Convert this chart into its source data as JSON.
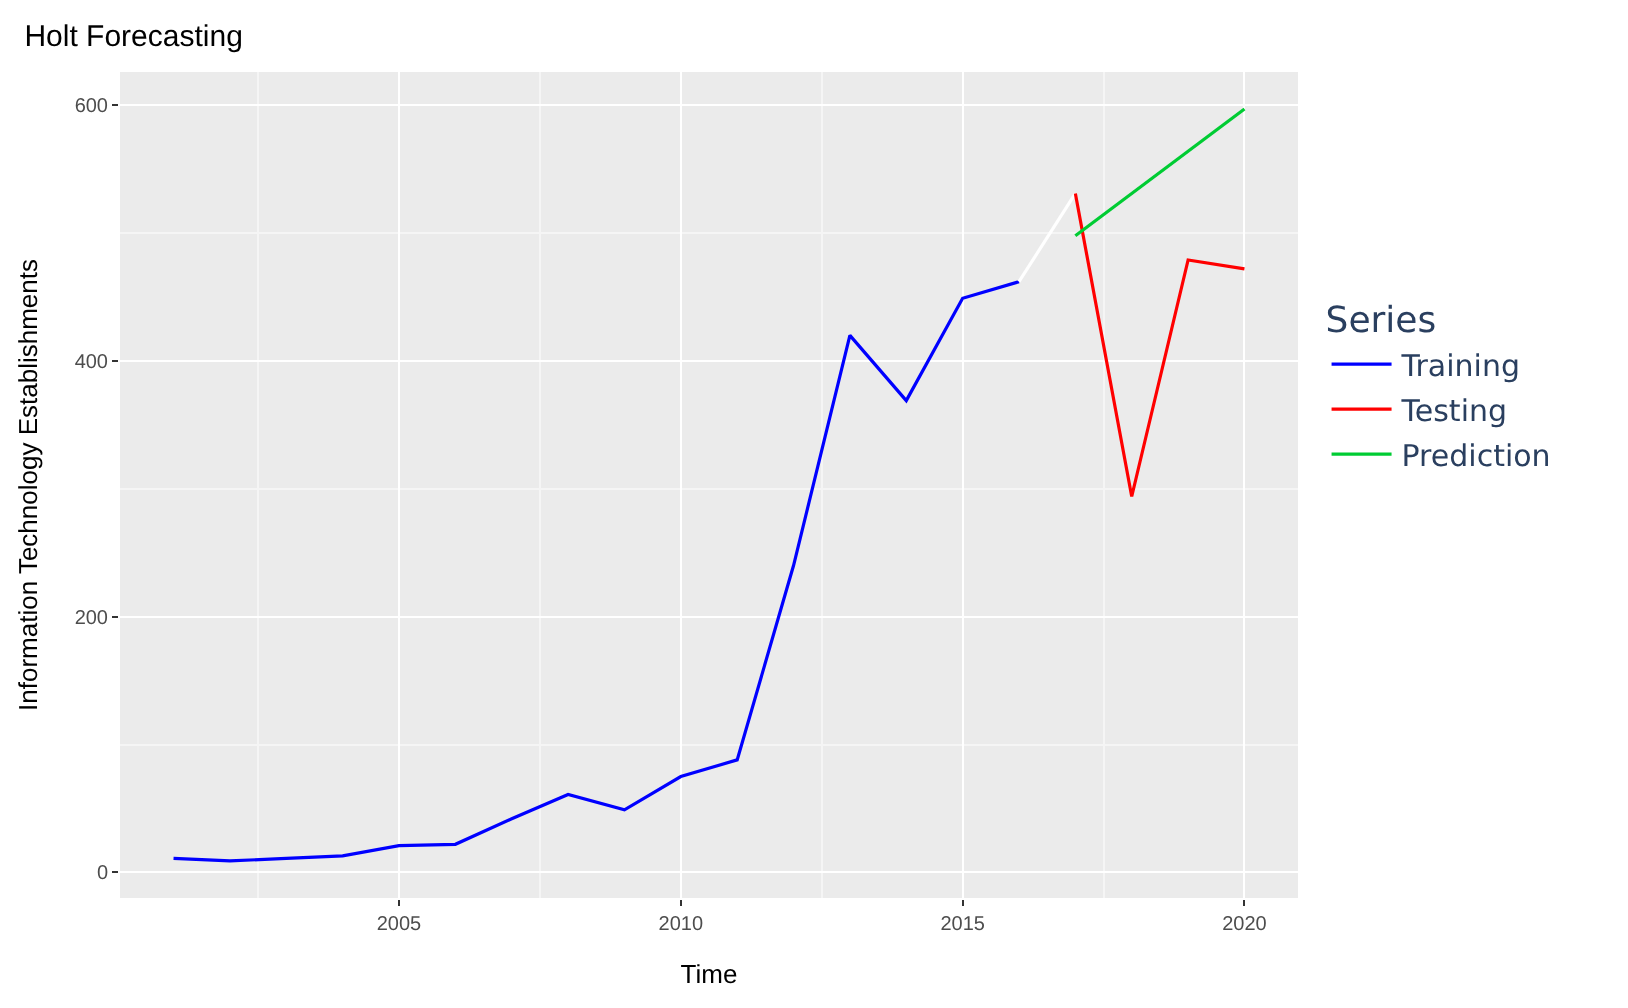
{
  "chart_data": {
    "type": "line",
    "title": "Holt Forecasting",
    "xlabel": "Time",
    "ylabel": "Information Technology Establishments",
    "legend_title": "Series",
    "series": [
      {
        "name": "Training",
        "color": "#0000ff",
        "x": [
          2001,
          2002,
          2003,
          2004,
          2005,
          2006,
          2007,
          2008,
          2009,
          2010,
          2011,
          2012,
          2013,
          2014,
          2015,
          2016
        ],
        "values": [
          11,
          9,
          11,
          13,
          21,
          22,
          42,
          61,
          49,
          75,
          88,
          240,
          420,
          369,
          449,
          462
        ]
      },
      {
        "color": "#ffffff",
        "x": [
          2016,
          2017
        ],
        "values": [
          462,
          531
        ]
      },
      {
        "name": "Testing",
        "color": "#ff0000",
        "x": [
          2017,
          2018,
          2019,
          2020
        ],
        "values": [
          531,
          294,
          479,
          472
        ]
      },
      {
        "name": "Prediction",
        "color": "#00cc33",
        "x": [
          2017,
          2020
        ],
        "values": [
          498,
          597
        ]
      }
    ],
    "xlim": [
      2000.05,
      2020.95
    ],
    "xticks": [
      2005,
      2010,
      2015,
      2020
    ],
    "ylim": [
      -20,
      626
    ],
    "yticks": [
      0,
      200,
      400,
      600
    ],
    "grid": true,
    "legend": "right"
  }
}
